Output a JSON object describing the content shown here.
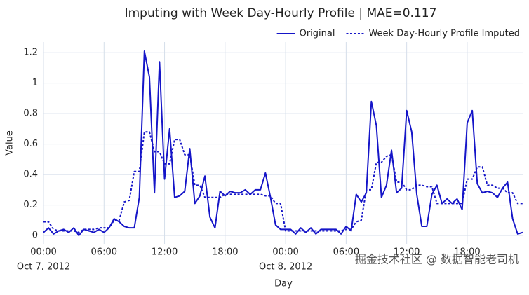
{
  "chart_data": {
    "type": "line",
    "title": "Imputing with Week Day-Hourly Profile | MAE=0.117",
    "x_label": "Day",
    "y_label": "Value",
    "watermark": "掘金技术社区 @ 数据智能老司机",
    "x": [
      "2012-10-07 00:00",
      "2012-10-07 00:30",
      "2012-10-07 01:00",
      "2012-10-07 01:30",
      "2012-10-07 02:00",
      "2012-10-07 02:30",
      "2012-10-07 03:00",
      "2012-10-07 03:30",
      "2012-10-07 04:00",
      "2012-10-07 04:30",
      "2012-10-07 05:00",
      "2012-10-07 05:30",
      "2012-10-07 06:00",
      "2012-10-07 06:30",
      "2012-10-07 07:00",
      "2012-10-07 07:30",
      "2012-10-07 08:00",
      "2012-10-07 08:30",
      "2012-10-07 09:00",
      "2012-10-07 09:30",
      "2012-10-07 10:00",
      "2012-10-07 10:30",
      "2012-10-07 11:00",
      "2012-10-07 11:30",
      "2012-10-07 12:00",
      "2012-10-07 12:30",
      "2012-10-07 13:00",
      "2012-10-07 13:30",
      "2012-10-07 14:00",
      "2012-10-07 14:30",
      "2012-10-07 15:00",
      "2012-10-07 15:30",
      "2012-10-07 16:00",
      "2012-10-07 16:30",
      "2012-10-07 17:00",
      "2012-10-07 17:30",
      "2012-10-07 18:00",
      "2012-10-07 18:30",
      "2012-10-07 19:00",
      "2012-10-07 19:30",
      "2012-10-07 20:00",
      "2012-10-07 20:30",
      "2012-10-07 21:00",
      "2012-10-07 21:30",
      "2012-10-07 22:00",
      "2012-10-07 22:30",
      "2012-10-07 23:00",
      "2012-10-07 23:30",
      "2012-10-08 00:00",
      "2012-10-08 00:30",
      "2012-10-08 01:00",
      "2012-10-08 01:30",
      "2012-10-08 02:00",
      "2012-10-08 02:30",
      "2012-10-08 03:00",
      "2012-10-08 03:30",
      "2012-10-08 04:00",
      "2012-10-08 04:30",
      "2012-10-08 05:00",
      "2012-10-08 05:30",
      "2012-10-08 06:00",
      "2012-10-08 06:30",
      "2012-10-08 07:00",
      "2012-10-08 07:30",
      "2012-10-08 08:00",
      "2012-10-08 08:30",
      "2012-10-08 09:00",
      "2012-10-08 09:30",
      "2012-10-08 10:00",
      "2012-10-08 10:30",
      "2012-10-08 11:00",
      "2012-10-08 11:30",
      "2012-10-08 12:00",
      "2012-10-08 12:30",
      "2012-10-08 13:00",
      "2012-10-08 13:30",
      "2012-10-08 14:00",
      "2012-10-08 14:30",
      "2012-10-08 15:00",
      "2012-10-08 15:30",
      "2012-10-08 16:00",
      "2012-10-08 16:30",
      "2012-10-08 17:00",
      "2012-10-08 17:30",
      "2012-10-08 18:00",
      "2012-10-08 18:30",
      "2012-10-08 19:00",
      "2012-10-08 19:30",
      "2012-10-08 20:00",
      "2012-10-08 20:30",
      "2012-10-08 21:00",
      "2012-10-08 21:30",
      "2012-10-08 22:00",
      "2012-10-08 22:30",
      "2012-10-08 23:00",
      "2012-10-08 23:30"
    ],
    "series": [
      {
        "name": "Original",
        "color": "#1515c8",
        "dash": "solid",
        "values": [
          0.02,
          0.05,
          0.01,
          0.03,
          0.04,
          0.02,
          0.05,
          0.0,
          0.04,
          0.03,
          0.02,
          0.04,
          0.02,
          0.05,
          0.11,
          0.09,
          0.06,
          0.05,
          0.05,
          0.25,
          1.21,
          1.04,
          0.28,
          1.14,
          0.37,
          0.7,
          0.25,
          0.26,
          0.29,
          0.57,
          0.21,
          0.26,
          0.39,
          0.12,
          0.05,
          0.29,
          0.26,
          0.29,
          0.28,
          0.28,
          0.3,
          0.27,
          0.3,
          0.3,
          0.41,
          0.25,
          0.07,
          0.04,
          0.04,
          0.04,
          0.01,
          0.05,
          0.02,
          0.05,
          0.01,
          0.04,
          0.04,
          0.04,
          0.04,
          0.01,
          0.06,
          0.03,
          0.27,
          0.22,
          0.28,
          0.88,
          0.72,
          0.25,
          0.33,
          0.56,
          0.28,
          0.31,
          0.82,
          0.68,
          0.27,
          0.06,
          0.06,
          0.27,
          0.33,
          0.21,
          0.24,
          0.21,
          0.24,
          0.17,
          0.74,
          0.82,
          0.34,
          0.28,
          0.29,
          0.28,
          0.25,
          0.31,
          0.35,
          0.11,
          0.01,
          0.02
        ]
      },
      {
        "name": "Week Day-Hourly Profile Imputed",
        "color": "#1515c8",
        "dash": "dot",
        "values": [
          0.09,
          0.09,
          0.04,
          0.03,
          0.03,
          0.03,
          0.03,
          0.02,
          0.04,
          0.04,
          0.04,
          0.05,
          0.05,
          0.05,
          0.1,
          0.1,
          0.22,
          0.23,
          0.42,
          0.42,
          0.68,
          0.68,
          0.55,
          0.55,
          0.47,
          0.47,
          0.63,
          0.63,
          0.53,
          0.53,
          0.33,
          0.33,
          0.25,
          0.25,
          0.25,
          0.25,
          0.27,
          0.27,
          0.27,
          0.27,
          0.27,
          0.27,
          0.27,
          0.27,
          0.26,
          0.26,
          0.21,
          0.21,
          0.03,
          0.03,
          0.03,
          0.03,
          0.03,
          0.03,
          0.03,
          0.03,
          0.03,
          0.03,
          0.03,
          0.03,
          0.04,
          0.04,
          0.09,
          0.1,
          0.3,
          0.3,
          0.48,
          0.48,
          0.52,
          0.53,
          0.35,
          0.35,
          0.3,
          0.3,
          0.33,
          0.33,
          0.32,
          0.32,
          0.21,
          0.21,
          0.21,
          0.21,
          0.21,
          0.21,
          0.37,
          0.37,
          0.45,
          0.45,
          0.33,
          0.33,
          0.31,
          0.31,
          0.28,
          0.28,
          0.21,
          0.21
        ]
      }
    ],
    "xlim": [
      "2012-10-07 00:00",
      "2012-10-08 23:30"
    ],
    "xticks": [
      {
        "value": "2012-10-07 00:00",
        "label": [
          "00:00",
          "Oct 7, 2012"
        ]
      },
      {
        "value": "2012-10-07 06:00",
        "label": [
          "06:00"
        ]
      },
      {
        "value": "2012-10-07 12:00",
        "label": [
          "12:00"
        ]
      },
      {
        "value": "2012-10-07 18:00",
        "label": [
          "18:00"
        ]
      },
      {
        "value": "2012-10-08 00:00",
        "label": [
          "00:00",
          "Oct 8, 2012"
        ]
      },
      {
        "value": "2012-10-08 06:00",
        "label": [
          "06:00"
        ]
      },
      {
        "value": "2012-10-08 12:00",
        "label": [
          "12:00"
        ]
      },
      {
        "value": "2012-10-08 18:00",
        "label": [
          "18:00"
        ]
      }
    ],
    "ylim": [
      -0.055,
      1.27
    ],
    "yticks": [
      0,
      0.2,
      0.4,
      0.6,
      0.8,
      1,
      1.2
    ],
    "grid": true,
    "legend": "top-right"
  }
}
